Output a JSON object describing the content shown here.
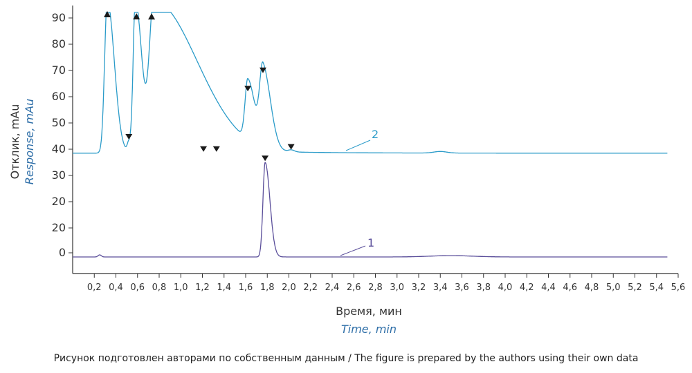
{
  "chart_data": {
    "type": "line",
    "ylabel": "Отклик, mAu",
    "ylabel_en": "Response, mAu",
    "xlabel": "Время, мин",
    "xlabel_en": "Time, min",
    "caption": "Рисунок подготовлен авторами по собственным данным / The figure is prepared by the authors using their own data",
    "x_ticks": [
      "0,2",
      "0,4",
      "0,6",
      "0,8",
      "1,0",
      "1,2",
      "1,4",
      "1,6",
      "1,8",
      "2,0",
      "2,2",
      "2,4",
      "2,6",
      "2,8",
      "3,0",
      "3,2",
      "3,4",
      "3,6",
      "3,8",
      "4,0",
      "4,2",
      "4,4",
      "4,6",
      "4,8",
      "5,0",
      "5,2",
      "5,4",
      "5,6"
    ],
    "x_tick_values": [
      0.2,
      0.4,
      0.6,
      0.8,
      1.0,
      1.2,
      1.4,
      1.6,
      1.8,
      2.0,
      2.2,
      2.4,
      2.6,
      2.8,
      3.0,
      3.2,
      3.4,
      3.6,
      3.8,
      4.0,
      4.2,
      4.4,
      4.6,
      4.8,
      5.0,
      5.2,
      5.4,
      5.6
    ],
    "xlim": [
      0.0,
      5.6
    ],
    "y_tick_labels": [
      "90",
      "80",
      "70",
      "60",
      "50",
      "40",
      "30",
      "20",
      "20",
      "0"
    ],
    "grid": false,
    "series": [
      {
        "name": "2",
        "color": "#2a9bc9",
        "baseline": 38.5,
        "peaks": [
          {
            "x": 0.32,
            "height": 58,
            "width": 0.025,
            "tail": 0.01
          },
          {
            "x": 0.58,
            "height": 58,
            "width": 0.02,
            "tail": 0.01
          },
          {
            "x": 0.75,
            "height": 58,
            "width": 0.04,
            "tail": 0.09
          },
          {
            "x": 0.52,
            "height": 4,
            "width": 0.015,
            "tail": 0.005
          },
          {
            "x": 1.62,
            "height": 23,
            "width": 0.025,
            "tail": 0.01
          },
          {
            "x": 1.76,
            "height": 30,
            "width": 0.03,
            "tail": 0.01
          },
          {
            "x": 2.02,
            "height": 0.8,
            "width": 0.03,
            "tail": 0.0
          },
          {
            "x": 3.4,
            "height": 0.6,
            "width": 0.06,
            "tail": 0.0
          }
        ],
        "markers": [
          {
            "x": 0.32,
            "shape": "up"
          },
          {
            "x": 0.59,
            "shape": "up"
          },
          {
            "x": 0.73,
            "shape": "up"
          },
          {
            "x": 0.52,
            "shape": "down"
          },
          {
            "x": 1.21,
            "shape": "down"
          },
          {
            "x": 1.33,
            "shape": "down"
          },
          {
            "x": 1.62,
            "shape": "down"
          },
          {
            "x": 1.76,
            "shape": "down"
          },
          {
            "x": 2.02,
            "shape": "down"
          }
        ]
      },
      {
        "name": "1",
        "color": "#5a4e9a",
        "baseline": 1.5,
        "peaks": [
          {
            "x": 0.25,
            "height": 0.8,
            "width": 0.015,
            "tail": 0.0
          },
          {
            "x": 1.78,
            "height": 36,
            "width": 0.02,
            "tail": 0.006
          },
          {
            "x": 3.5,
            "height": 0.5,
            "width": 0.2,
            "tail": 0.0
          }
        ],
        "markers": [
          {
            "x": 1.78,
            "shape": "down"
          }
        ]
      }
    ]
  }
}
